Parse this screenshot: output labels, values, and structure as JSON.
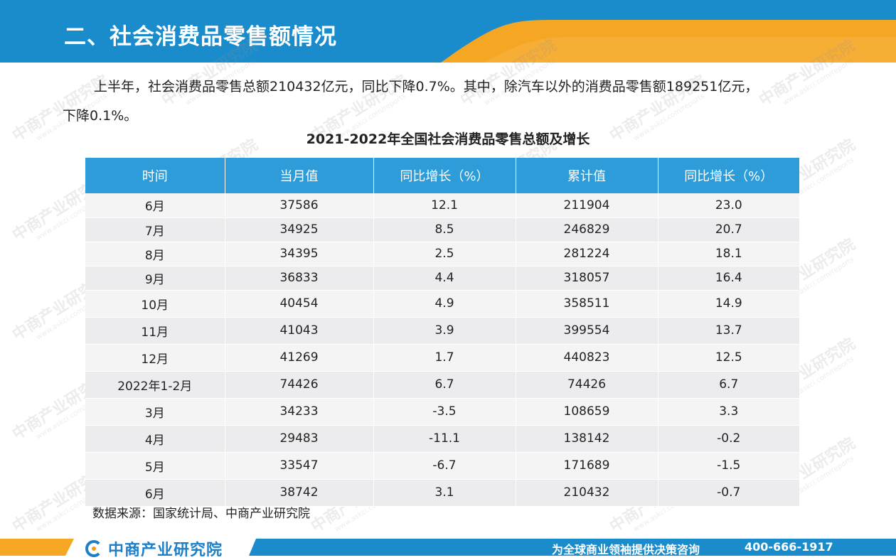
{
  "header": {
    "title": "二、社会消费品零售额情况"
  },
  "intro": {
    "line1": "上半年，社会消费品零售总额210432亿元，同比下降0.7%。其中，除汽车以外的消费品零售额189251亿元，",
    "line2": "下降0.1%。"
  },
  "table": {
    "title": "2021-2022年全国社会消费品零售总额及增长",
    "headers": [
      "时间",
      "当月值",
      "同比增长（%）",
      "累计值",
      "同比增长（%）"
    ],
    "rows": [
      [
        "6月",
        "37586",
        "12.1",
        "211904",
        "23.0"
      ],
      [
        "7月",
        "34925",
        "8.5",
        "246829",
        "20.7"
      ],
      [
        "8月",
        "34395",
        "2.5",
        "281224",
        "18.1"
      ],
      [
        "9月",
        "36833",
        "4.4",
        "318057",
        "16.4"
      ],
      [
        "10月",
        "40454",
        "4.9",
        "358511",
        "14.9"
      ],
      [
        "11月",
        "41043",
        "3.9",
        "399554",
        "13.7"
      ],
      [
        "12月",
        "41269",
        "1.7",
        "440823",
        "12.5"
      ],
      [
        "2022年1-2月",
        "74426",
        "6.7",
        "74426",
        "6.7"
      ],
      [
        "3月",
        "34233",
        "-3.5",
        "108659",
        "3.3"
      ],
      [
        "4月",
        "29483",
        "-11.1",
        "138142",
        "-0.2"
      ],
      [
        "5月",
        "33547",
        "-6.7",
        "171689",
        "-1.5"
      ],
      [
        "6月",
        "38742",
        "3.1",
        "210432",
        "-0.7"
      ]
    ]
  },
  "source": "数据来源：国家统计局、中商产业研究院",
  "footer": {
    "logo_text": "中商产业研究院",
    "slogan": "为全球商业领袖提供决策咨询",
    "phone": "400-666-1917"
  },
  "watermark": {
    "text": "中商产业研究院",
    "url": "www.askci.com/reports"
  },
  "colors": {
    "header_blue": "#1a8ccc",
    "accent_orange": "#f5a623",
    "table_header": "#2d9cd8",
    "footer_blue": "#1a8ccc"
  }
}
